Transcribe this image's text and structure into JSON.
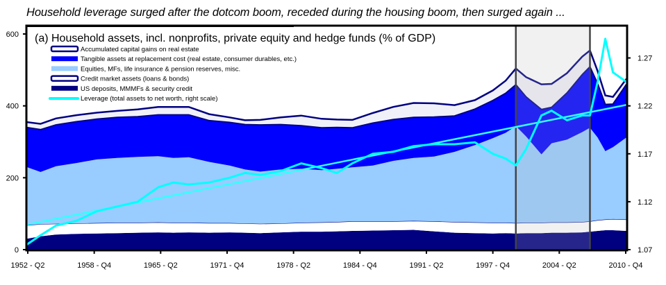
{
  "headline": "Household leverage surged after the dotcom boom, receded during the housing boom, then surged again ...",
  "chart_data": {
    "type": "area",
    "title": "(a) Household assets, incl. nonprofits, private equity and hedge funds (% of GDP)",
    "xlabel": "",
    "ylabel": "% of GDP",
    "y2label": "Leverage (total assets to net worth)",
    "x_tick_labels": [
      "1952 - Q2",
      "1958 - Q4",
      "1965 - Q2",
      "1971 - Q4",
      "1978 - Q2",
      "1984 - Q4",
      "1991 - Q2",
      "1997 - Q4",
      "2004 - Q2",
      "2010 - Q4"
    ],
    "x_ticks": [
      1952.25,
      1958.75,
      1965.25,
      1971.75,
      1978.25,
      1984.75,
      1991.25,
      1997.75,
      2004.25,
      2010.75
    ],
    "xlim": [
      1952.25,
      2010.75
    ],
    "ylim": [
      0,
      600
    ],
    "y_ticks": [
      0,
      200,
      400,
      600
    ],
    "y_tick_labels": [
      "0",
      "200",
      "400",
      "600"
    ],
    "y2lim": [
      1.07,
      1.295
    ],
    "y2_ticks": [
      1.07,
      1.12,
      1.17,
      1.22,
      1.27
    ],
    "y2_tick_labels": [
      "1.07",
      "1.12",
      "1.17",
      "1.22",
      "1.27"
    ],
    "grid": false,
    "legend_position": "top-left",
    "highlight_period": [
      2000.0,
      2007.25
    ],
    "x": [
      1952.25,
      1953.5,
      1955,
      1957,
      1959,
      1961,
      1963,
      1965,
      1966.5,
      1968,
      1970,
      1972,
      1973.5,
      1975,
      1977,
      1979,
      1981,
      1982.5,
      1984,
      1986,
      1988,
      1990,
      1992,
      1994,
      1996,
      1997.75,
      1999,
      2000,
      2001,
      2002.5,
      2003.5,
      2005,
      2006.5,
      2007.25,
      2008,
      2008.75,
      2009.5,
      2010.75
    ],
    "series": [
      {
        "name": "US deposits, MMMFs  & security credit",
        "kind": "stacked-area",
        "color": "#000080",
        "values": [
          30,
          37,
          42,
          44,
          45,
          46,
          47,
          48,
          47,
          48,
          47,
          48,
          47,
          46,
          48,
          50,
          50,
          51,
          52,
          53,
          54,
          55,
          51,
          47,
          46,
          45,
          46,
          45,
          46,
          46,
          47,
          47,
          48,
          50,
          52,
          54,
          54,
          52
        ]
      },
      {
        "name": "Credit market assets (loans & bonds)",
        "kind": "stacked-area",
        "color": "#ffffff",
        "values": [
          38,
          34,
          30,
          29,
          29,
          29,
          28,
          28,
          28,
          27,
          27,
          26,
          26,
          26,
          25,
          25,
          26,
          26,
          27,
          26,
          25,
          25,
          28,
          30,
          30,
          30,
          29,
          29,
          29,
          29,
          29,
          29,
          29,
          29,
          30,
          30,
          31,
          32
        ]
      },
      {
        "name": "Equities, MFs, life insurance & pension reserves, misc.",
        "kind": "stacked-area",
        "color": "#99ccff",
        "values": [
          162,
          145,
          160,
          168,
          177,
          180,
          183,
          184,
          180,
          182,
          170,
          160,
          150,
          145,
          150,
          150,
          145,
          148,
          150,
          155,
          168,
          175,
          180,
          195,
          215,
          235,
          250,
          270,
          240,
          190,
          220,
          230,
          250,
          260,
          230,
          190,
          200,
          228
        ]
      },
      {
        "name": "Tangible assets at replacement cost (real estate, consumer durables, etc.)",
        "kind": "stacked-area",
        "color": "#0000ff",
        "values": [
          110,
          118,
          115,
          115,
          112,
          113,
          112,
          115,
          120,
          118,
          115,
          120,
          125,
          130,
          125,
          120,
          118,
          115,
          110,
          118,
          115,
          113,
          110,
          100,
          100,
          105,
          110,
          115,
          110,
          125,
          100,
          130,
          160,
          170,
          150,
          130,
          120,
          148
        ]
      },
      {
        "name": "Accumulated capital gains on real estate",
        "kind": "stacked-area",
        "color": "#f0f0f8",
        "outline": "#000080",
        "values": [
          15,
          16,
          18,
          18,
          18,
          18,
          20,
          22,
          22,
          22,
          18,
          14,
          12,
          14,
          20,
          28,
          25,
          22,
          22,
          28,
          35,
          40,
          38,
          30,
          25,
          28,
          35,
          45,
          55,
          70,
          65,
          55,
          50,
          45,
          35,
          25,
          20,
          15
        ]
      },
      {
        "name": "Leverage  (total assets to net worth, right scale)",
        "kind": "line",
        "axis": "right",
        "color": "#00ffff",
        "values": [
          1.075,
          1.085,
          1.095,
          1.1,
          1.11,
          1.115,
          1.12,
          1.135,
          1.14,
          1.138,
          1.14,
          1.145,
          1.15,
          1.148,
          1.152,
          1.16,
          1.155,
          1.15,
          1.16,
          1.17,
          1.172,
          1.178,
          1.18,
          1.18,
          1.182,
          1.17,
          1.165,
          1.158,
          1.175,
          1.21,
          1.215,
          1.205,
          1.21,
          1.21,
          1.245,
          1.29,
          1.255,
          1.245
        ]
      },
      {
        "name": "Leverage trend",
        "kind": "trend-line",
        "axis": "right",
        "color": "#33ffff",
        "x": [
          1952.25,
          2010.75
        ],
        "values": [
          1.096,
          1.221
        ]
      }
    ],
    "legend": [
      {
        "label": "Accumulated capital gains on real estate",
        "swatch": "outlined-white"
      },
      {
        "label": "Tangible assets at replacement cost (real estate, consumer durables, etc.)",
        "swatch": "fill",
        "color": "#0000ff"
      },
      {
        "label": "Equities, MFs, life insurance & pension reserves, misc.",
        "swatch": "fill",
        "color": "#99ccff"
      },
      {
        "label": "Credit market assets (loans & bonds)",
        "swatch": "outlined-white"
      },
      {
        "label": "US deposits, MMMFs  & security credit",
        "swatch": "fill",
        "color": "#000080"
      },
      {
        "label": "Leverage  (total assets to net worth, right scale)",
        "swatch": "line",
        "color": "#00ffff"
      }
    ]
  }
}
